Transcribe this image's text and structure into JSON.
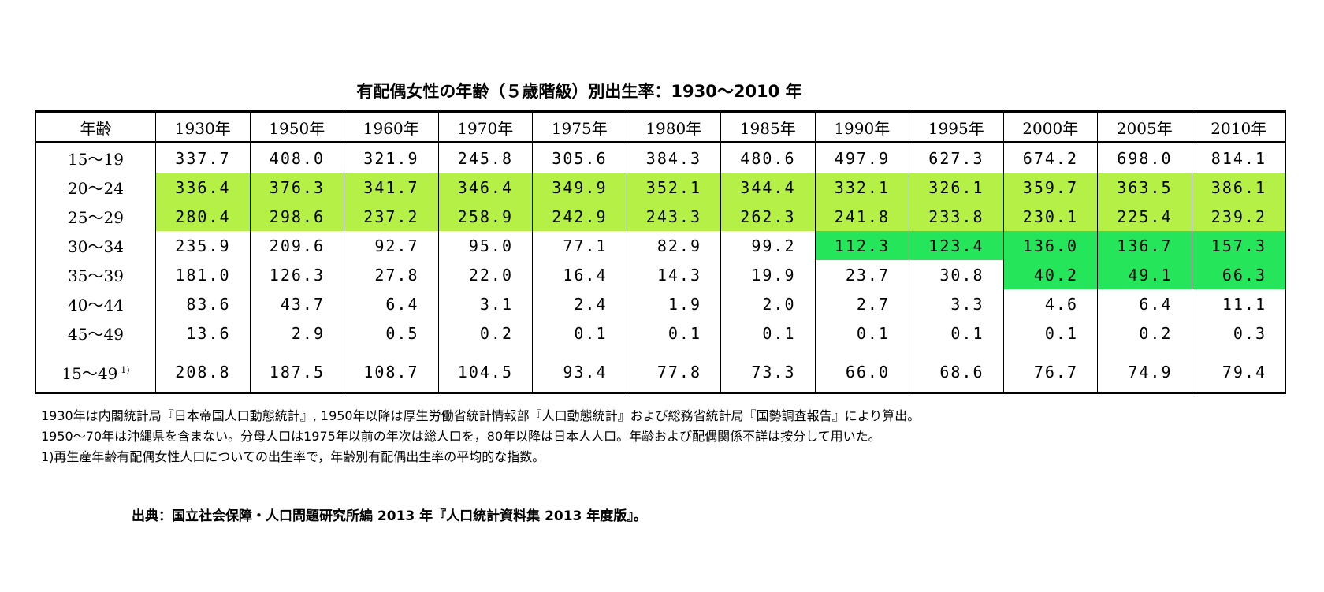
{
  "header": {
    "title": "有配偶女性の年齢（５歳階級）別出生率：1930～2010 年"
  },
  "table": {
    "columns": [
      "年齢",
      "1930年",
      "1950年",
      "1960年",
      "1970年",
      "1975年",
      "1980年",
      "1985年",
      "1990年",
      "1995年",
      "2000年",
      "2005年",
      "2010年"
    ],
    "rows": [
      [
        "15～19",
        "337.7",
        "408.0",
        "321.9",
        "245.8",
        "305.6",
        "384.3",
        "480.6",
        "497.9",
        "627.3",
        "674.2",
        "698.0",
        "814.1"
      ],
      [
        "20～24",
        "336.4",
        "376.3",
        "341.7",
        "346.4",
        "349.9",
        "352.1",
        "344.4",
        "332.1",
        "326.1",
        "359.7",
        "363.5",
        "386.1"
      ],
      [
        "25～29",
        "280.4",
        "298.6",
        "237.2",
        "258.9",
        "242.9",
        "243.3",
        "262.3",
        "241.8",
        "233.8",
        "230.1",
        "225.4",
        "239.2"
      ],
      [
        "30～34",
        "235.9",
        "209.6",
        "92.7",
        "95.0",
        "77.1",
        "82.9",
        "99.2",
        "112.3",
        "123.4",
        "136.0",
        "136.7",
        "157.3"
      ],
      [
        "35～39",
        "181.0",
        "126.3",
        "27.8",
        "22.0",
        "16.4",
        "14.3",
        "19.9",
        "23.7",
        "30.8",
        "40.2",
        "49.1",
        "66.3"
      ],
      [
        "40～44",
        "83.6",
        "43.7",
        "6.4",
        "3.1",
        "2.4",
        "1.9",
        "2.0",
        "2.7",
        "3.3",
        "4.6",
        "6.4",
        "11.1"
      ],
      [
        "45～49",
        "13.6",
        "2.9",
        "0.5",
        "0.2",
        "0.1",
        "0.1",
        "0.1",
        "0.1",
        "0.1",
        "0.1",
        "0.2",
        "0.3"
      ],
      [
        "15～49",
        "208.8",
        "187.5",
        "108.7",
        "104.5",
        "93.4",
        "77.8",
        "73.3",
        "66.0",
        "68.6",
        "76.7",
        "74.9",
        "79.4"
      ]
    ],
    "last_row_footnote": "1)"
  },
  "notes": [
    "1930年は内閣統計局『日本帝国人口動態統計』, 1950年以降は厚生労働省統計情報部『人口動態統計』および総務省統計局『国勢調査報告』により算出。",
    "1950～70年は沖縄県を含まない。分母人口は1975年以前の年次は総人口を，80年以降は日本人人口。年齢および配偶関係不詳は按分して用いた。",
    "1)再生産年齢有配偶女性人口についての出生率で，年齢別有配偶出生率の平均的な指数。"
  ],
  "source": "出典：国立社会保障・人口問題研究所編 2013 年『人口統計資料集 2013 年度版』。"
}
